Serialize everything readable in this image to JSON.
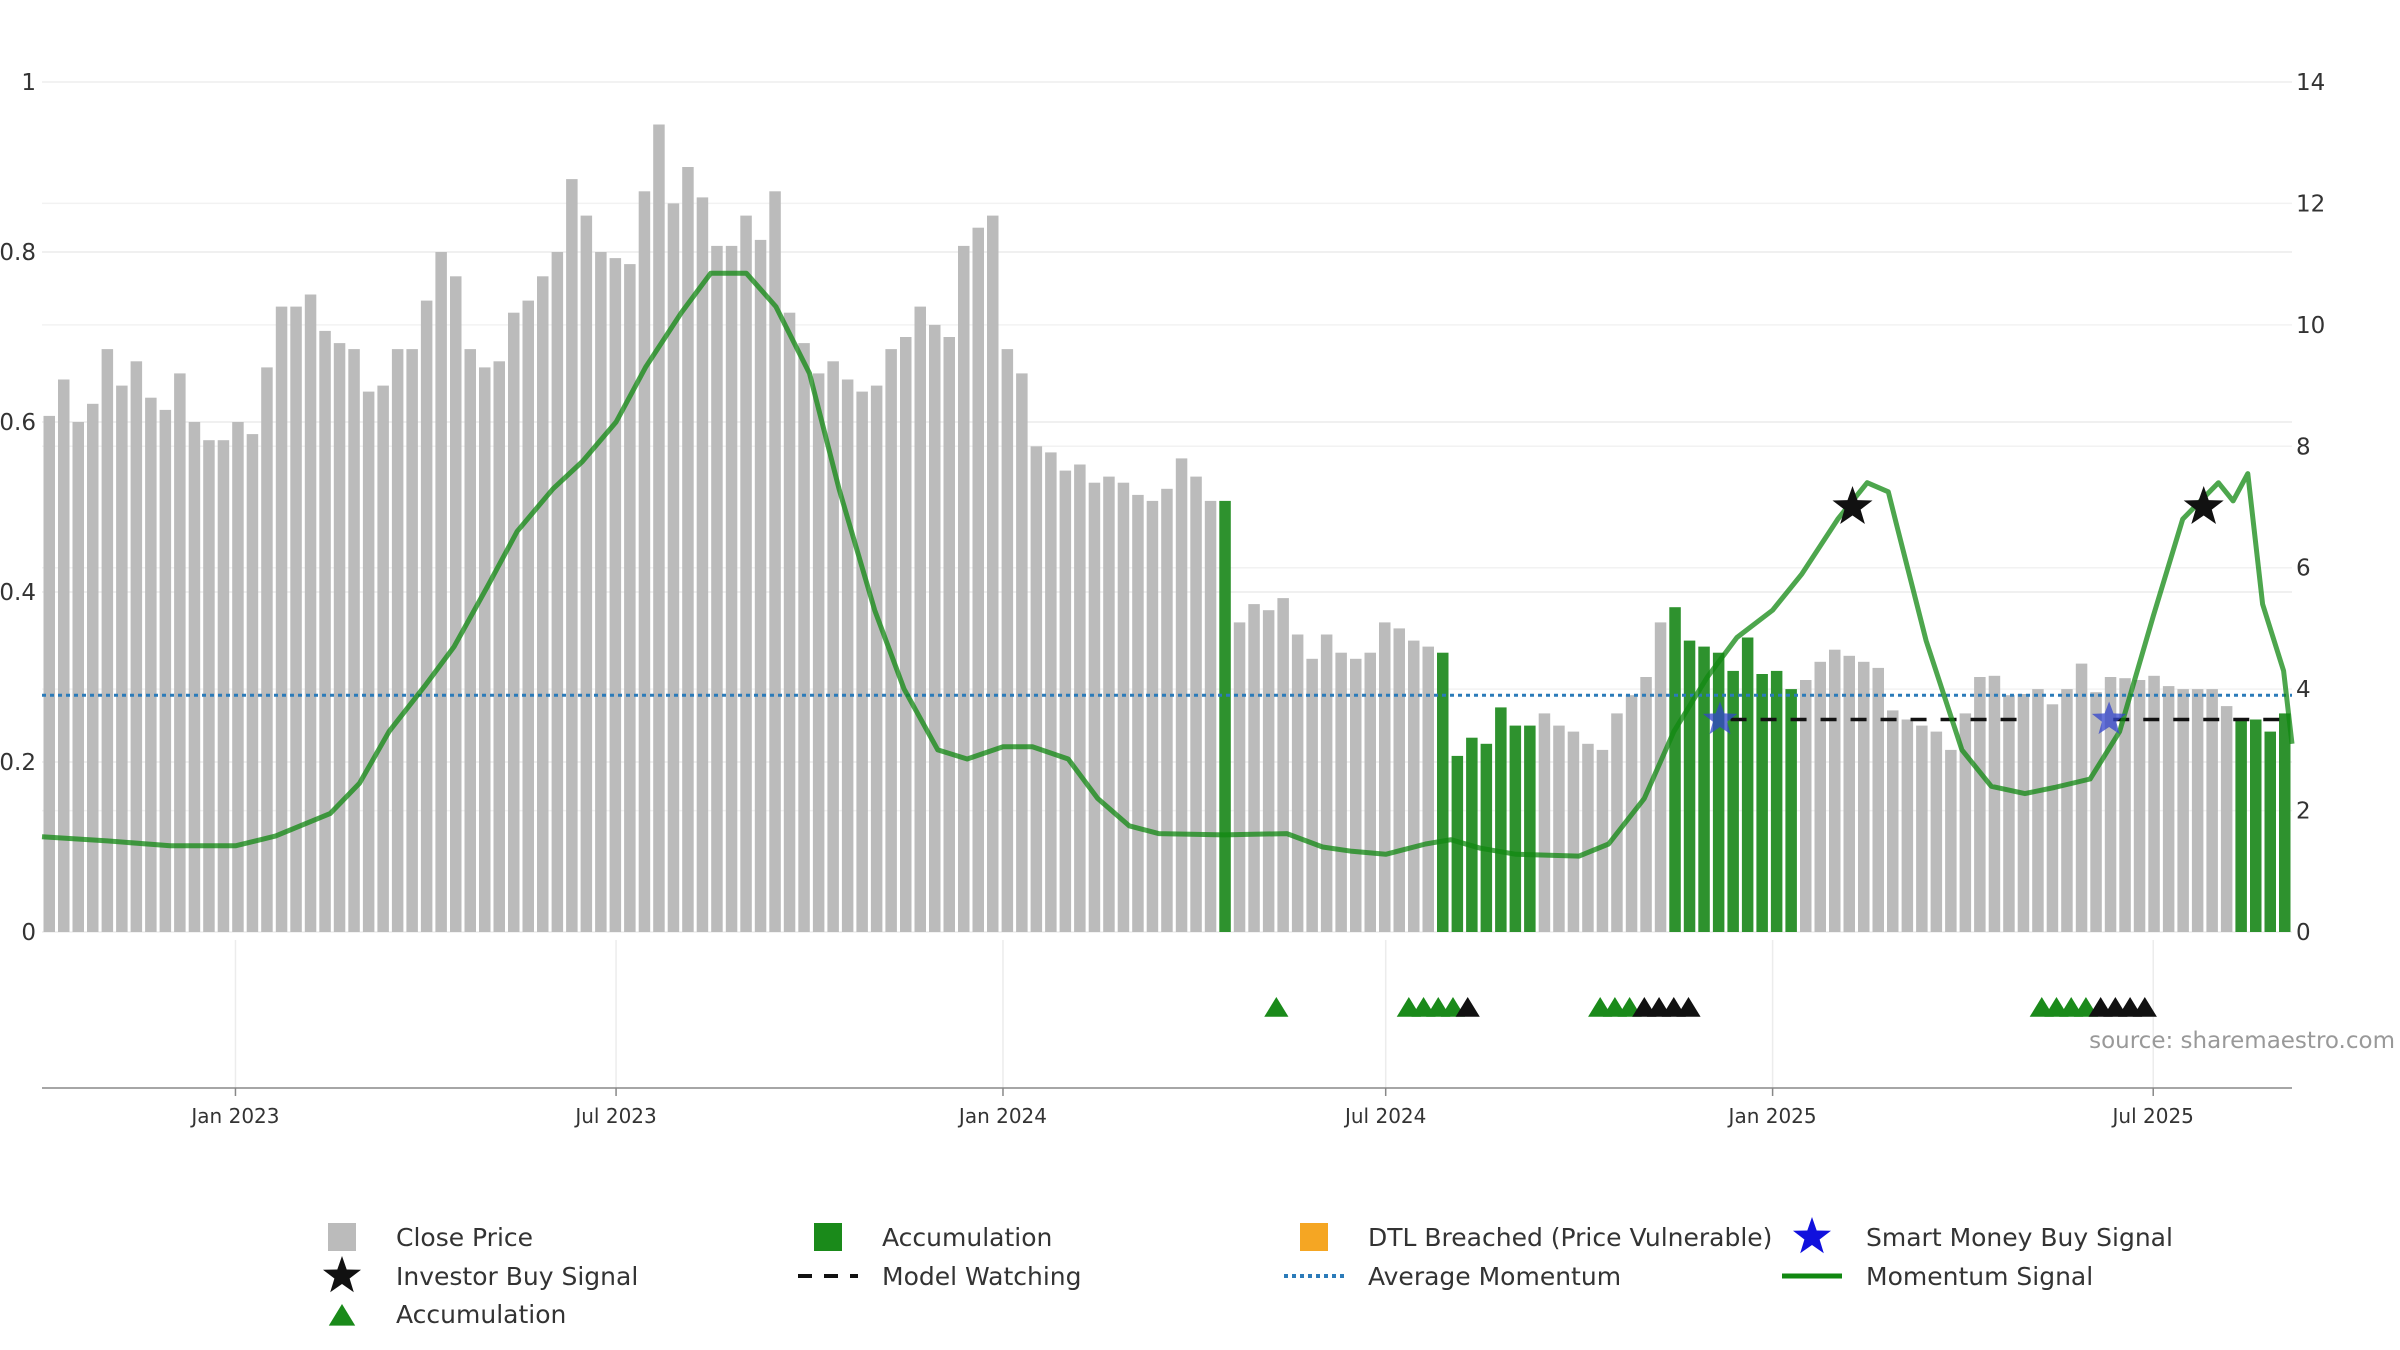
{
  "chart_data": {
    "type": "bar",
    "title": "",
    "source_note": "source: sharemaestro.com",
    "y_left": {
      "min": 0,
      "max": 1,
      "ticks": [
        0,
        0.2,
        0.4,
        0.6,
        0.8,
        1
      ],
      "tick_labels": [
        "0",
        "0.2",
        "0.4",
        "0.6",
        "0.8",
        "1"
      ]
    },
    "y_right": {
      "min": 0,
      "max": 14,
      "ticks": [
        0,
        2,
        4,
        6,
        8,
        10,
        12,
        14
      ]
    },
    "x_axis": {
      "start_date": "2022-10-01",
      "end_date": "2025-09-05",
      "ticks": [
        {
          "label": "Jan 2023",
          "date": "2023-01-01"
        },
        {
          "label": "Jul 2023",
          "date": "2023-07-01"
        },
        {
          "label": "Jan 2024",
          "date": "2024-01-01"
        },
        {
          "label": "Jul 2024",
          "date": "2024-07-01"
        },
        {
          "label": "Jan 2025",
          "date": "2025-01-01"
        },
        {
          "label": "Jul 2025",
          "date": "2025-07-01"
        }
      ]
    },
    "bars_note": "weekly close price (right axis); state: p = price only, a = accumulation",
    "close_price": [
      8.5,
      9.1,
      8.4,
      8.7,
      9.6,
      9.0,
      9.4,
      8.8,
      8.6,
      9.2,
      8.4,
      8.1,
      8.1,
      8.4,
      8.2,
      9.3,
      10.3,
      10.3,
      10.5,
      9.9,
      9.7,
      9.6,
      8.9,
      9.0,
      9.6,
      9.6,
      10.4,
      11.2,
      10.8,
      9.6,
      9.3,
      9.4,
      10.2,
      10.4,
      10.8,
      11.2,
      12.4,
      11.8,
      11.2,
      11.1,
      11.0,
      12.2,
      13.3,
      12.0,
      12.6,
      12.1,
      11.3,
      11.3,
      11.8,
      11.4,
      12.2,
      10.2,
      9.7,
      9.2,
      9.4,
      9.1,
      8.9,
      9.0,
      9.6,
      9.8,
      10.3,
      10.0,
      9.8,
      11.3,
      11.6,
      11.8,
      9.6,
      9.2,
      8.0,
      7.9,
      7.6,
      7.7,
      7.4,
      7.5,
      7.4,
      7.2,
      7.1,
      7.3,
      7.8,
      7.5,
      7.1,
      7.1,
      5.1,
      5.4,
      5.3,
      5.5,
      4.9,
      4.5,
      4.9,
      4.6,
      4.5,
      4.6,
      5.1,
      5.0,
      4.8,
      4.7,
      4.6,
      2.9,
      3.2,
      3.1,
      3.7,
      3.4,
      3.4,
      3.6,
      3.4,
      3.3,
      3.1,
      3.0,
      3.6,
      3.9,
      4.2,
      5.1,
      5.35,
      4.8,
      4.7,
      4.6,
      4.3,
      4.85,
      4.25,
      4.3,
      4.0,
      4.15,
      4.45,
      4.65,
      4.55,
      4.45,
      4.35,
      3.65,
      3.5,
      3.4,
      3.3,
      3.0,
      3.6,
      4.2,
      4.22,
      3.9,
      3.92,
      4.0,
      3.75,
      4.0,
      4.42,
      3.95,
      4.2,
      4.18,
      4.15,
      4.22,
      4.05,
      4.0,
      4.0,
      4.0,
      3.72,
      3.5,
      3.5,
      3.3,
      3.6
    ],
    "bar_state": "pppppppppppppppppppppppppppppppppppppppppppppppppppppppppppppppppppppppppppppppppappppppppppppppaaaaaaapppppppppaaaaaaaaappppppppppppppppppppppppppppppaaaaaaaaappppppppppppppp",
    "series": [
      {
        "name": "Close Price",
        "kind": "bars",
        "axis": "right",
        "color": "#bbbbbb"
      },
      {
        "name": "Accumulation",
        "kind": "bars",
        "axis": "right",
        "color": "#2e922e"
      },
      {
        "name": "Momentum Signal",
        "kind": "line",
        "axis": "right",
        "color": "#118811",
        "points": [
          [
            "2022-10-01",
            1.57
          ],
          [
            "2022-11-01",
            1.5
          ],
          [
            "2022-12-01",
            1.42
          ],
          [
            "2023-01-01",
            1.42
          ],
          [
            "2023-01-20",
            1.58
          ],
          [
            "2023-02-15",
            1.95
          ],
          [
            "2023-03-01",
            2.45
          ],
          [
            "2023-03-15",
            3.3
          ],
          [
            "2023-04-01",
            4.05
          ],
          [
            "2023-04-15",
            4.7
          ],
          [
            "2023-05-01",
            5.7
          ],
          [
            "2023-05-15",
            6.6
          ],
          [
            "2023-06-01",
            7.3
          ],
          [
            "2023-06-15",
            7.75
          ],
          [
            "2023-07-01",
            8.4
          ],
          [
            "2023-07-15",
            9.3
          ],
          [
            "2023-08-01",
            10.2
          ],
          [
            "2023-08-15",
            10.85
          ],
          [
            "2023-09-01",
            10.85
          ],
          [
            "2023-09-15",
            10.3
          ],
          [
            "2023-10-01",
            9.2
          ],
          [
            "2023-10-15",
            7.3
          ],
          [
            "2023-11-01",
            5.3
          ],
          [
            "2023-11-15",
            4.0
          ],
          [
            "2023-12-01",
            3.0
          ],
          [
            "2023-12-15",
            2.85
          ],
          [
            "2024-01-01",
            3.05
          ],
          [
            "2024-01-15",
            3.05
          ],
          [
            "2024-02-01",
            2.85
          ],
          [
            "2024-02-15",
            2.2
          ],
          [
            "2024-03-01",
            1.75
          ],
          [
            "2024-03-15",
            1.62
          ],
          [
            "2024-04-15",
            1.6
          ],
          [
            "2024-05-15",
            1.62
          ],
          [
            "2024-06-01",
            1.4
          ],
          [
            "2024-06-15",
            1.33
          ],
          [
            "2024-07-01",
            1.28
          ],
          [
            "2024-07-20",
            1.45
          ],
          [
            "2024-08-01",
            1.52
          ],
          [
            "2024-08-15",
            1.38
          ],
          [
            "2024-09-01",
            1.28
          ],
          [
            "2024-10-01",
            1.25
          ],
          [
            "2024-10-15",
            1.45
          ],
          [
            "2024-11-01",
            2.2
          ],
          [
            "2024-11-15",
            3.3
          ],
          [
            "2024-12-01",
            4.2
          ],
          [
            "2024-12-15",
            4.85
          ],
          [
            "2025-01-01",
            5.3
          ],
          [
            "2025-01-15",
            5.9
          ],
          [
            "2025-02-01",
            6.8
          ],
          [
            "2025-02-15",
            7.4
          ],
          [
            "2025-02-25",
            7.25
          ],
          [
            "2025-03-01",
            6.7
          ],
          [
            "2025-03-15",
            4.8
          ],
          [
            "2025-04-01",
            3.0
          ],
          [
            "2025-04-15",
            2.4
          ],
          [
            "2025-05-01",
            2.28
          ],
          [
            "2025-05-15",
            2.38
          ],
          [
            "2025-06-01",
            2.52
          ],
          [
            "2025-06-15",
            3.3
          ],
          [
            "2025-07-01",
            5.2
          ],
          [
            "2025-07-15",
            6.8
          ],
          [
            "2025-08-01",
            7.4
          ],
          [
            "2025-08-08",
            7.1
          ],
          [
            "2025-08-15",
            7.55
          ],
          [
            "2025-08-22",
            5.4
          ],
          [
            "2025-09-01",
            4.3
          ],
          [
            "2025-09-05",
            3.1
          ]
        ]
      },
      {
        "name": "Average Momentum",
        "kind": "hline",
        "axis": "right",
        "value": 3.9,
        "color": "#2b7bb9"
      },
      {
        "name": "Model Watching",
        "kind": "dashed",
        "axis": "right",
        "value": 3.5,
        "color": "#111111",
        "segments": [
          [
            "2024-12-12",
            "2025-04-30"
          ],
          [
            "2025-06-12",
            "2025-09-05"
          ]
        ]
      },
      {
        "name": "Investor Buy Signal",
        "kind": "markers",
        "shape": "star",
        "color": "#111111",
        "points": [
          [
            "2025-02-08",
            7.0
          ],
          [
            "2025-07-25",
            7.0
          ]
        ]
      },
      {
        "name": "Smart Money Buy Signal",
        "kind": "markers",
        "shape": "star",
        "color": "#3344cc",
        "points": [
          [
            "2024-12-07",
            3.5
          ],
          [
            "2025-06-10",
            3.5
          ]
        ]
      },
      {
        "name": "Accumulation",
        "kind": "triangles",
        "green": [
          "2024-05-10",
          "2024-07-12",
          "2024-07-19",
          "2024-07-26",
          "2024-08-02",
          "2024-10-11",
          "2024-10-18",
          "2024-10-25",
          "2025-05-09",
          "2025-05-16",
          "2025-05-23",
          "2025-05-30"
        ],
        "black": [
          "2024-08-09",
          "2024-11-01",
          "2024-11-08",
          "2024-11-15",
          "2024-11-22",
          "2025-06-06",
          "2025-06-13",
          "2025-06-20",
          "2025-06-27"
        ]
      }
    ],
    "legend": {
      "position": "bottom",
      "items": [
        {
          "label": "Close Price",
          "symbol": "square",
          "color": "#bbbbbb"
        },
        {
          "label": "Accumulation",
          "symbol": "square",
          "color": "#1a8a1a"
        },
        {
          "label": "DTL Breached (Price Vulnerable)",
          "symbol": "square",
          "color": "#f5a623"
        },
        {
          "label": "Smart Money Buy Signal",
          "symbol": "star",
          "color": "#1111dd"
        },
        {
          "label": "Investor Buy Signal",
          "symbol": "star",
          "color": "#111111"
        },
        {
          "label": "Model Watching",
          "symbol": "dash",
          "color": "#111111"
        },
        {
          "label": "Average Momentum",
          "symbol": "dot",
          "color": "#2b7bb9"
        },
        {
          "label": "Momentum Signal",
          "symbol": "line",
          "color": "#118811"
        },
        {
          "label": "Accumulation",
          "symbol": "triangle",
          "color": "#1a8a1a"
        }
      ]
    }
  }
}
